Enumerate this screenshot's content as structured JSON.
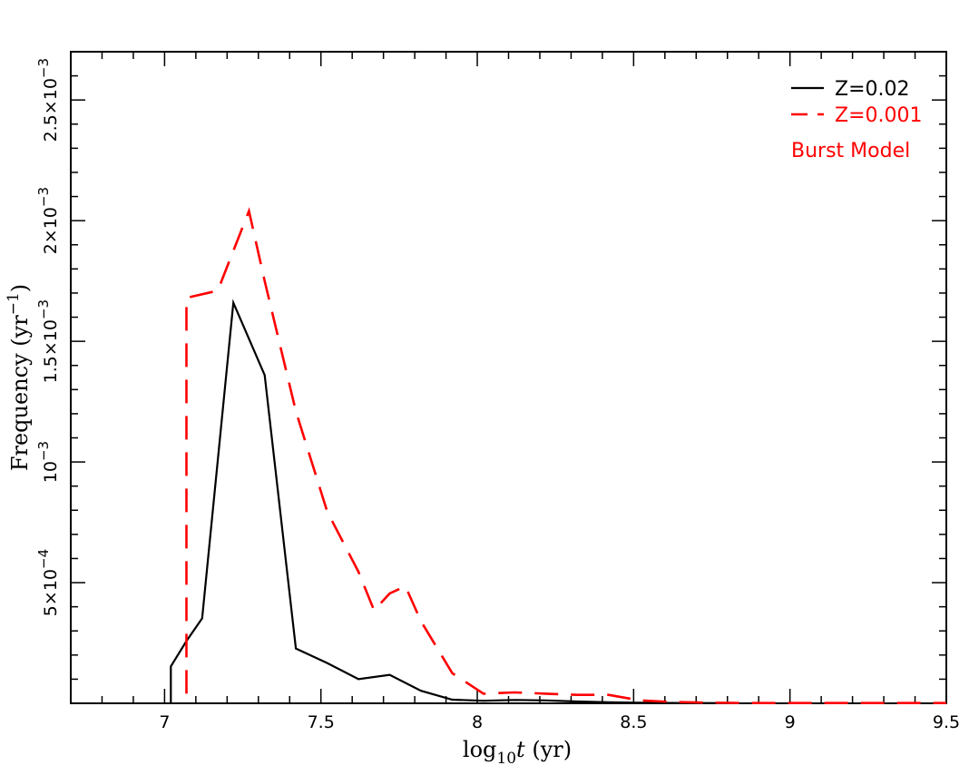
{
  "chart_data": {
    "type": "line",
    "xlabel": {
      "main": "log",
      "sub": "10",
      "var": "t",
      "unit": " (yr)"
    },
    "ylabel": {
      "main": "Frequency (yr",
      "sup": "−1",
      "close": ")"
    },
    "xlim": [
      6.7,
      9.5
    ],
    "ylim": [
      0,
      0.0027
    ],
    "x_ticks": [
      {
        "value": 7,
        "label": "7"
      },
      {
        "value": 7.5,
        "label": "7.5"
      },
      {
        "value": 8,
        "label": "8"
      },
      {
        "value": 8.5,
        "label": "8.5"
      },
      {
        "value": 9,
        "label": "9"
      },
      {
        "value": 9.5,
        "label": "9.5"
      }
    ],
    "y_ticks": [
      {
        "value": 0.0005,
        "mant": "5×10",
        "exp": "−4"
      },
      {
        "value": 0.001,
        "mant": "10",
        "exp": "−3"
      },
      {
        "value": 0.0015,
        "mant": "1.5×10",
        "exp": "−3"
      },
      {
        "value": 0.002,
        "mant": "2×10",
        "exp": "−3"
      },
      {
        "value": 0.0025,
        "mant": "2.5×10",
        "exp": "−3"
      }
    ],
    "annotation": {
      "text": "Burst Model",
      "color": "#ff0000"
    },
    "series": [
      {
        "name": "Z=0.02",
        "color": "#000000",
        "dash": "solid",
        "points": [
          [
            7.02,
            0.0
          ],
          [
            7.02,
            0.000153
          ],
          [
            7.07,
            0.000258
          ],
          [
            7.12,
            0.000352
          ],
          [
            7.22,
            0.00166
          ],
          [
            7.32,
            0.00136
          ],
          [
            7.42,
            0.000227
          ],
          [
            7.52,
            0.000167
          ],
          [
            7.62,
            0.0001
          ],
          [
            7.72,
            0.000118
          ],
          [
            7.82,
            5.2e-05
          ],
          [
            7.92,
            1.5e-05
          ],
          [
            8.02,
            1.05e-05
          ],
          [
            8.12,
            1.4e-05
          ],
          [
            8.22,
            1.2e-05
          ],
          [
            8.32,
            7.5e-06
          ],
          [
            8.42,
            4.5e-06
          ],
          [
            8.52,
            2.5e-06
          ],
          [
            8.62,
            1.5e-06
          ],
          [
            8.72,
            1e-06
          ],
          [
            8.82,
            5e-07
          ]
        ]
      },
      {
        "name": "Z=0.001",
        "color": "#ff0000",
        "dash": "dashed",
        "points": [
          [
            7.07,
            4e-05
          ],
          [
            7.07,
            0.00168
          ],
          [
            7.17,
            0.00171
          ],
          [
            7.27,
            0.00204
          ],
          [
            7.32,
            0.00175
          ],
          [
            7.42,
            0.00121
          ],
          [
            7.52,
            0.000795
          ],
          [
            7.62,
            0.000545
          ],
          [
            7.67,
            0.000385
          ],
          [
            7.72,
            0.000455
          ],
          [
            7.77,
            0.000485
          ],
          [
            7.82,
            0.00034
          ],
          [
            7.92,
            0.000125
          ],
          [
            8.02,
            4e-05
          ],
          [
            8.12,
            4.5e-05
          ],
          [
            8.22,
            4e-05
          ],
          [
            8.32,
            3.5e-05
          ],
          [
            8.42,
            3.5e-05
          ],
          [
            8.52,
            1.2e-05
          ],
          [
            8.62,
            5.5e-06
          ],
          [
            8.72,
            3e-06
          ],
          [
            8.82,
            1.5e-06
          ],
          [
            8.92,
            1e-06
          ],
          [
            9.02,
            1e-06
          ],
          [
            9.12,
            1e-06
          ],
          [
            9.22,
            1e-06
          ],
          [
            9.32,
            1e-06
          ],
          [
            9.5,
            1e-06
          ]
        ]
      }
    ]
  }
}
